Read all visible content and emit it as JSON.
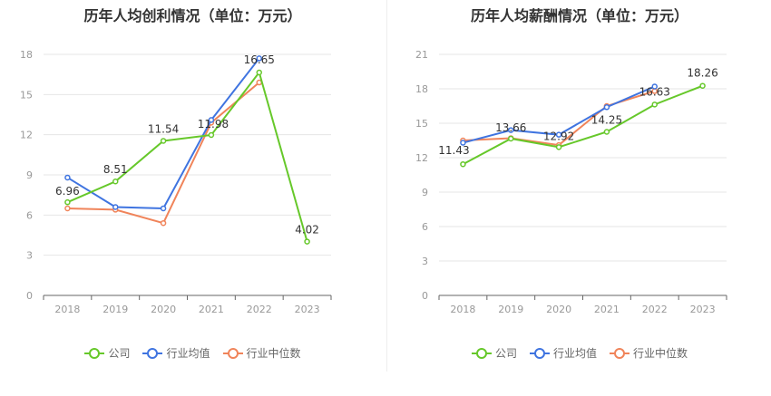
{
  "colors": {
    "company": "#66c82a",
    "industry_avg": "#3f74e0",
    "industry_median": "#f0845a",
    "grid": "#e6e6e6",
    "axis": "#666666"
  },
  "legend": {
    "company": "公司",
    "industry_avg": "行业均值",
    "industry_median": "行业中位数"
  },
  "chart_data": [
    {
      "type": "line",
      "title": "历年人均创利情况（单位：万元）",
      "categories": [
        "2018",
        "2019",
        "2020",
        "2021",
        "2022",
        "2023"
      ],
      "yticks": [
        "0",
        "3",
        "6",
        "9",
        "12",
        "15",
        "18"
      ],
      "ylim": [
        0,
        18
      ],
      "grid": true,
      "legend_position": "bottom",
      "series": [
        {
          "name": "公司",
          "key": "company",
          "values": [
            6.96,
            8.51,
            11.54,
            11.98,
            16.65,
            4.02
          ],
          "labels": [
            "6.96",
            "8.51",
            "11.54",
            "11.98",
            "16.65",
            "4.02"
          ]
        },
        {
          "name": "行业均值",
          "key": "industry_avg",
          "values": [
            8.8,
            6.6,
            6.5,
            13.1,
            17.7,
            null
          ]
        },
        {
          "name": "行业中位数",
          "key": "industry_median",
          "values": [
            6.5,
            6.4,
            5.4,
            12.9,
            15.9,
            null
          ]
        }
      ]
    },
    {
      "type": "line",
      "title": "历年人均薪酬情况（单位：万元）",
      "categories": [
        "2018",
        "2019",
        "2020",
        "2021",
        "2022",
        "2023"
      ],
      "yticks": [
        "0",
        "3",
        "6",
        "9",
        "12",
        "15",
        "18",
        "21"
      ],
      "ylim": [
        0,
        21
      ],
      "grid": true,
      "legend_position": "bottom",
      "series": [
        {
          "name": "公司",
          "key": "company",
          "values": [
            11.43,
            13.66,
            12.92,
            14.25,
            16.63,
            18.26
          ],
          "labels": [
            "11.43",
            "13.66",
            "12.92",
            "14.25",
            "16.63",
            "18.26"
          ]
        },
        {
          "name": "行业均值",
          "key": "industry_avg",
          "values": [
            13.3,
            14.4,
            14.0,
            16.4,
            18.2,
            null
          ]
        },
        {
          "name": "行业中位数",
          "key": "industry_median",
          "values": [
            13.5,
            13.7,
            13.1,
            16.5,
            17.8,
            null
          ]
        }
      ]
    }
  ]
}
